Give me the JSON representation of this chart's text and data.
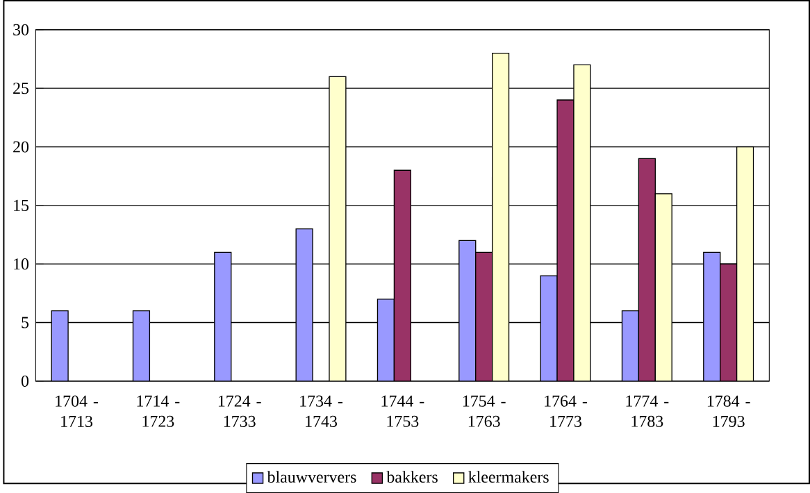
{
  "chart_data": {
    "type": "bar",
    "categories": [
      "1704 - 1713",
      "1714 - 1723",
      "1724 - 1733",
      "1734 - 1743",
      "1744 - 1753",
      "1754 - 1763",
      "1764 - 1773",
      "1774 - 1783",
      "1784 - 1793"
    ],
    "series": [
      {
        "name": "blauwververs",
        "color": "#9999ff",
        "values": [
          6,
          6,
          11,
          13,
          7,
          12,
          9,
          6,
          11
        ]
      },
      {
        "name": "bakkers",
        "color": "#993366",
        "values": [
          null,
          null,
          null,
          null,
          18,
          11,
          24,
          19,
          10
        ]
      },
      {
        "name": "kleermakers",
        "color": "#ffffcc",
        "values": [
          null,
          null,
          null,
          26,
          null,
          28,
          27,
          16,
          20
        ]
      }
    ],
    "ylim": [
      0,
      30
    ],
    "yticks": [
      0,
      5,
      10,
      15,
      20,
      25,
      30
    ],
    "grid": "y",
    "legend": "bottom"
  }
}
